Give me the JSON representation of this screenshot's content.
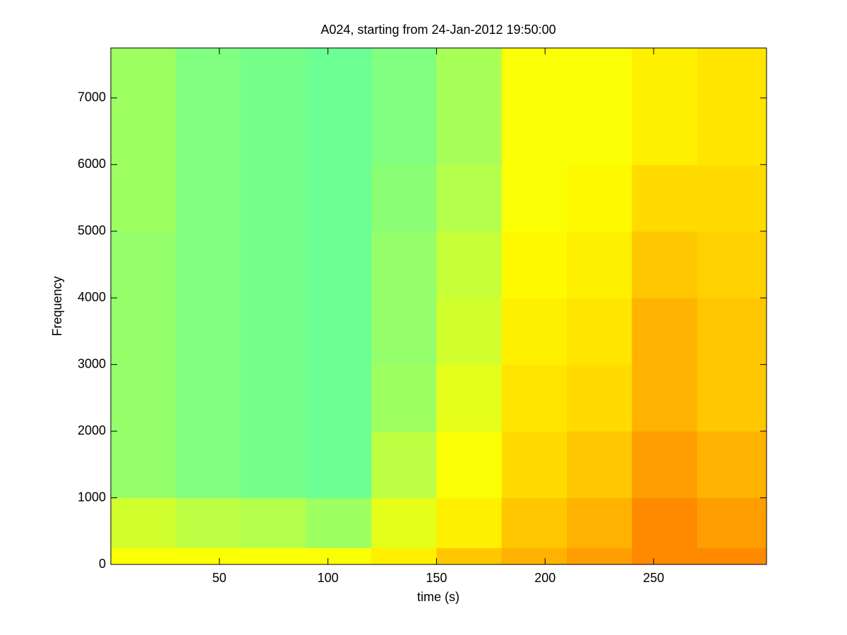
{
  "chart_data": {
    "type": "heatmap",
    "title": "A024, starting from 24-Jan-2012 19:50:00",
    "x_label": "time (s)",
    "y_label": "Frequency",
    "xlim": [
      0,
      302
    ],
    "ylim": [
      0,
      7750
    ],
    "xticks": [
      50,
      100,
      150,
      200,
      250
    ],
    "yticks": [
      0,
      1000,
      2000,
      3000,
      4000,
      5000,
      6000,
      7000
    ],
    "colormap": "jet",
    "clim": [
      0,
      1
    ],
    "xbins": [
      0,
      30,
      60,
      90,
      120,
      150,
      180,
      210,
      240,
      270,
      302
    ],
    "ybins": [
      0,
      250,
      1000,
      2000,
      3000,
      4000,
      5000,
      6000,
      7750
    ],
    "values": [
      [
        0.62,
        0.62,
        0.62,
        0.62,
        0.64,
        0.68,
        0.7,
        0.72,
        0.74,
        0.74
      ],
      [
        0.58,
        0.56,
        0.55,
        0.53,
        0.6,
        0.64,
        0.68,
        0.7,
        0.74,
        0.72
      ],
      [
        0.52,
        0.5,
        0.49,
        0.48,
        0.56,
        0.62,
        0.66,
        0.68,
        0.72,
        0.7
      ],
      [
        0.52,
        0.5,
        0.49,
        0.48,
        0.53,
        0.6,
        0.65,
        0.66,
        0.7,
        0.68
      ],
      [
        0.52,
        0.5,
        0.49,
        0.48,
        0.52,
        0.58,
        0.64,
        0.65,
        0.7,
        0.68
      ],
      [
        0.52,
        0.5,
        0.49,
        0.48,
        0.52,
        0.57,
        0.63,
        0.64,
        0.68,
        0.67
      ],
      [
        0.53,
        0.5,
        0.49,
        0.48,
        0.51,
        0.55,
        0.62,
        0.63,
        0.66,
        0.66
      ],
      [
        0.53,
        0.5,
        0.49,
        0.48,
        0.5,
        0.54,
        0.62,
        0.62,
        0.64,
        0.65
      ]
    ]
  }
}
